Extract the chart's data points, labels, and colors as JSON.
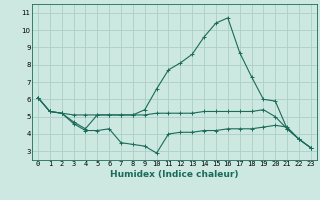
{
  "title": "",
  "xlabel": "Humidex (Indice chaleur)",
  "ylabel": "",
  "background_color": "#cce8e0",
  "grid_color": "#aacfc8",
  "line_color": "#1a6b5a",
  "xlim": [
    -0.5,
    23.5
  ],
  "ylim": [
    2.5,
    11.5
  ],
  "xticks": [
    0,
    1,
    2,
    3,
    4,
    5,
    6,
    7,
    8,
    9,
    10,
    11,
    12,
    13,
    14,
    15,
    16,
    17,
    18,
    19,
    20,
    21,
    22,
    23
  ],
  "yticks": [
    3,
    4,
    5,
    6,
    7,
    8,
    9,
    10,
    11
  ],
  "line1_x": [
    0,
    1,
    2,
    3,
    4,
    5,
    6,
    7,
    8,
    9,
    10,
    11,
    12,
    13,
    14,
    15,
    16,
    17,
    18,
    19,
    20,
    21,
    22,
    23
  ],
  "line1_y": [
    6.1,
    5.3,
    5.2,
    4.7,
    4.3,
    5.1,
    5.1,
    5.1,
    5.1,
    5.4,
    6.6,
    7.7,
    8.1,
    8.6,
    9.6,
    10.4,
    10.7,
    8.7,
    7.3,
    6.0,
    5.9,
    4.3,
    3.7,
    3.2
  ],
  "line2_x": [
    0,
    1,
    2,
    3,
    4,
    5,
    6,
    7,
    8,
    9,
    10,
    11,
    12,
    13,
    14,
    15,
    16,
    17,
    18,
    19,
    20,
    21,
    22,
    23
  ],
  "line2_y": [
    6.1,
    5.3,
    5.2,
    4.6,
    4.2,
    4.2,
    4.3,
    3.5,
    3.4,
    3.3,
    2.9,
    4.0,
    4.1,
    4.1,
    4.2,
    4.2,
    4.3,
    4.3,
    4.3,
    4.4,
    4.5,
    4.4,
    3.7,
    3.2
  ],
  "line3_x": [
    0,
    1,
    2,
    3,
    4,
    5,
    6,
    7,
    8,
    9,
    10,
    11,
    12,
    13,
    14,
    15,
    16,
    17,
    18,
    19,
    20,
    21,
    22,
    23
  ],
  "line3_y": [
    6.1,
    5.3,
    5.2,
    5.1,
    5.1,
    5.1,
    5.1,
    5.1,
    5.1,
    5.1,
    5.2,
    5.2,
    5.2,
    5.2,
    5.3,
    5.3,
    5.3,
    5.3,
    5.3,
    5.4,
    5.0,
    4.3,
    3.7,
    3.2
  ],
  "xlabel_fontsize": 6.5,
  "xlabel_fontweight": "bold",
  "tick_fontsize": 5.0,
  "marker_size": 2.5,
  "line_width": 0.8
}
